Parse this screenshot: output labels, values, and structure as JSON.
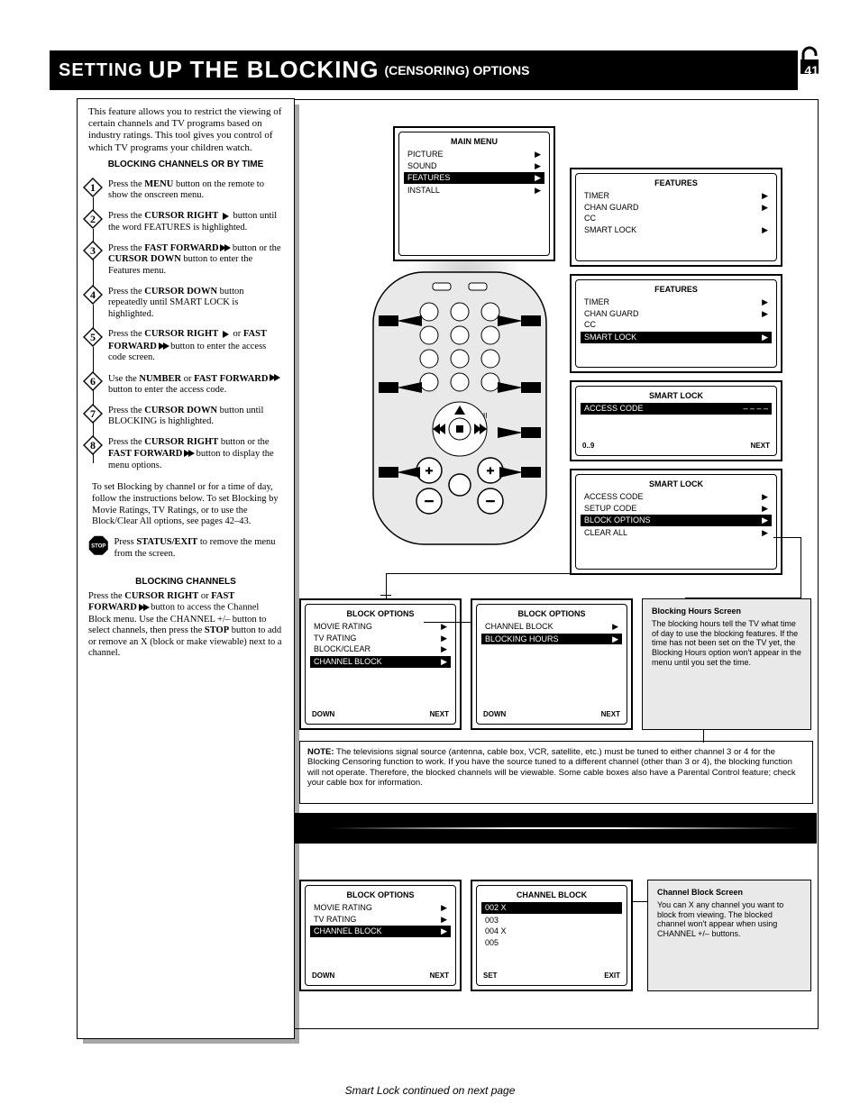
{
  "page": {
    "number": "41"
  },
  "title": {
    "small": "SETTING",
    "large": "UP THE BLOCKING",
    "sub": "(CENSORING) OPTIONS"
  },
  "intro": "This feature allows you to restrict the viewing of certain channels and TV programs based on industry ratings. This tool gives you control of which TV programs your children watch.",
  "section1_heading": "BLOCKING CHANNELS OR BY TIME",
  "steps": [
    {
      "n": "1",
      "body_html": "Press the <b>MENU</b> button on the remote to show the onscreen menu.",
      "vline": 24
    },
    {
      "n": "2",
      "body_html": "Press the <b>CURSOR RIGHT</b> <span class='arrow-r'></span> button until the word FEATURES is highlighted.",
      "vline": 44
    },
    {
      "n": "3",
      "body_html": "Press the <b>FAST FORWARD</b> <span class='ffwd'><span class='arrow-r'></span><span class='arrow-r'></span></span> button or the <b>CURSOR DOWN</b> button to enter the Features menu.",
      "vline": 40
    },
    {
      "n": "4",
      "body_html": "Press the <b>CURSOR DOWN</b> button repeatedly until SMART LOCK is highlighted.",
      "vline": 44
    },
    {
      "n": "5",
      "body_html": "Press the <b>CURSOR RIGHT</b> <span class='arrow-r'></span> or <b>FAST FORWARD</b> <span class='ffwd'><span class='arrow-r'></span><span class='arrow-r'></span></span> button to enter the access code screen.",
      "vline": 70
    },
    {
      "n": "6",
      "body_html": "Use the <b>NUMBER</b> or <b>FAST FORWARD</b> <span class='ffwd'><span class='arrow-r'></span><span class='arrow-r'></span></span> button to enter the access code.",
      "vline": 44
    },
    {
      "n": "7",
      "body_html": "Press the <b>CURSOR DOWN</b> button until BLOCKING is highlighted.",
      "vline": 44
    },
    {
      "n": "8",
      "body_html": "Press the <b>CURSOR RIGHT</b> button or the <b>FAST FORWARD</b> <span class='ffwd'><span class='arrow-r'></span><span class='arrow-r'></span></span> button to display the menu options.",
      "vline": 0
    }
  ],
  "lower_text": "To set Blocking by channel or for a time of day, follow the instructions below. To set Blocking by Movie Ratings, TV Ratings, or to use the Block/Clear All options, see pages 42–43.",
  "stop_label": "Press <b>STATUS/EXIT</b> to remove the menu from the screen.",
  "section2_heading": "BLOCKING CHANNELS",
  "channel_block": {
    "body": "Press the <b>CURSOR RIGHT</b> or <b>FAST FORWARD</b> <span class='ffwd'><span class='arrow-r'></span><span class='arrow-r'></span></span> button to access the Channel Block menu. Use the CHANNEL +/– button to select channels, then press the <b>STOP</b> button to add or remove an X (block or make viewable) next to a channel.",
    "screen1": {
      "title": "BLOCK OPTIONS",
      "hi": "CHANNEL BLOCK",
      "foot_l": "DOWN",
      "foot_r": "NEXT"
    },
    "screen2": {
      "title": "CHANNEL BLOCK",
      "lines": [
        "002  X",
        "003",
        "004  X",
        "005"
      ],
      "foot_l": "SET",
      "foot_r": "EXIT"
    },
    "panel": {
      "title": "Channel Block Screen",
      "body": "You can X any channel you want to block from viewing. The blocked channel won't appear when using CHANNEL +/– buttons."
    }
  },
  "screens": {
    "a": {
      "title": "MAIN MENU",
      "rows": [
        [
          "PICTURE",
          "▶"
        ],
        [
          "SOUND",
          "▶"
        ],
        [
          "FEATURES",
          "▶",
          "hi"
        ],
        [
          "INSTALL",
          "▶"
        ]
      ]
    },
    "b": {
      "title": "FEATURES",
      "rows": [
        [
          "TIMER",
          "▶"
        ],
        [
          "CHAN GUARD",
          "▶"
        ],
        [
          "CC",
          ""
        ],
        [
          "SMART LOCK",
          "▶"
        ]
      ]
    },
    "c": {
      "title": "FEATURES",
      "rows": [
        [
          "TIMER",
          "▶"
        ],
        [
          "CHAN GUARD",
          "▶"
        ],
        [
          "CC",
          ""
        ],
        [
          "SMART LOCK",
          "▶",
          "hi"
        ]
      ]
    },
    "d": {
      "title": "SMART LOCK",
      "rows": [
        [
          "ACCESS CODE",
          "– – – –",
          "hi"
        ]
      ],
      "foot_l": "0..9",
      "foot_r": "NEXT"
    },
    "e": {
      "title": "SMART LOCK",
      "rows": [
        [
          "ACCESS CODE",
          "▶"
        ],
        [
          "SETUP CODE",
          "▶"
        ],
        [
          "BLOCK OPTIONS",
          "▶",
          "hi"
        ],
        [
          "CLEAR ALL",
          "▶"
        ]
      ]
    },
    "f": {
      "title": "BLOCK OPTIONS",
      "rows": [
        [
          "MOVIE RATING",
          "▶"
        ],
        [
          "TV RATING",
          "▶"
        ],
        [
          "BLOCK/CLEAR",
          "▶"
        ],
        [
          "CHANNEL BLOCK",
          "▶",
          "hi"
        ]
      ],
      "foot_l": "DOWN",
      "foot_r": "NEXT"
    },
    "g": {
      "title": "BLOCK OPTIONS",
      "rows": [
        [
          "CHANNEL BLOCK",
          "▶"
        ],
        [
          "BLOCKING HOURS",
          "▶",
          "hi"
        ]
      ],
      "foot_l": "DOWN",
      "foot_r": "NEXT"
    },
    "h": {
      "title": "Blocking Hours Screen",
      "body": "The blocking hours tell the TV what time of day to use the blocking features. If the time has not been set on the TV yet, the Blocking Hours option won't appear in the menu until you set the time."
    }
  },
  "note": "<b>NOTE:</b> The televisions signal source (antenna, cable box, VCR, satellite, etc.) must be tuned to either channel 3 or 4 for the Blocking Censoring function to work. If you have the source tuned to a different channel (other than 3 or 4), the blocking function will not operate. Therefore, the blocked channels will be viewable. Some cable boxes also have a Parental Control feature; check your cable box for information.",
  "footer": "Smart Lock continued on next page"
}
